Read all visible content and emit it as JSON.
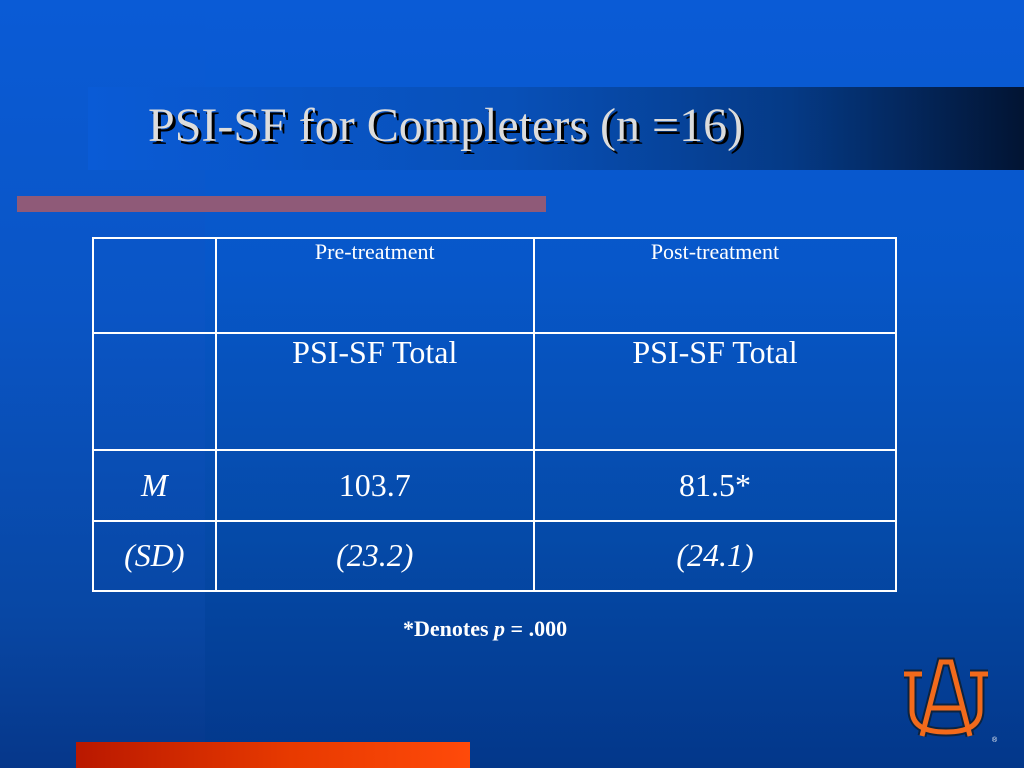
{
  "slide": {
    "title": "PSI-SF for Completers (n =16)"
  },
  "table": {
    "columns": [
      "",
      "Pre-treatment",
      "Post-treatment"
    ],
    "rows": [
      {
        "label": "",
        "pre": "PSI-SF Total",
        "post": "PSI-SF Total"
      },
      {
        "label": "M",
        "pre": "103.7",
        "post": "81.5*"
      },
      {
        "label": "(SD)",
        "pre": "(23.2)",
        "post": "(24.1)"
      }
    ]
  },
  "note": {
    "prefix": "*Denotes ",
    "symbol": "p",
    "suffix": " = .000"
  },
  "logo": {
    "text": "AU",
    "registered": "®"
  },
  "colors": {
    "background": "#0757c9",
    "title_text": "#dcdcdc",
    "top_rule": "#8f5a78",
    "bottom_rule": "#e83a00",
    "logo_orange": "#f26a1b",
    "logo_navy": "#0c2340"
  }
}
